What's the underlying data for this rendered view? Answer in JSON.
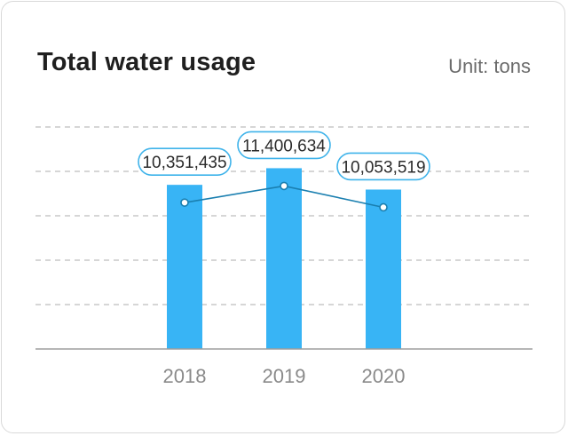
{
  "header": {
    "title": "Total water usage",
    "unit": "Unit: tons"
  },
  "colors": {
    "bar": "#38b4f5",
    "line": "#1a7fb0",
    "label_border": "#3fb3ea",
    "grid": "#bdbdbd",
    "axis": "#9e9e9e"
  },
  "chart_data": {
    "type": "bar",
    "title": "Total water usage",
    "ylabel": "Unit: tons",
    "categories": [
      "2018",
      "2019",
      "2020"
    ],
    "values": [
      10351435,
      11400634,
      10053519
    ],
    "value_labels": [
      "10,351,435",
      "11,400,634",
      "10,053,519"
    ],
    "overlay_line": true,
    "grid": true,
    "ylim": [
      0,
      14000000
    ]
  }
}
